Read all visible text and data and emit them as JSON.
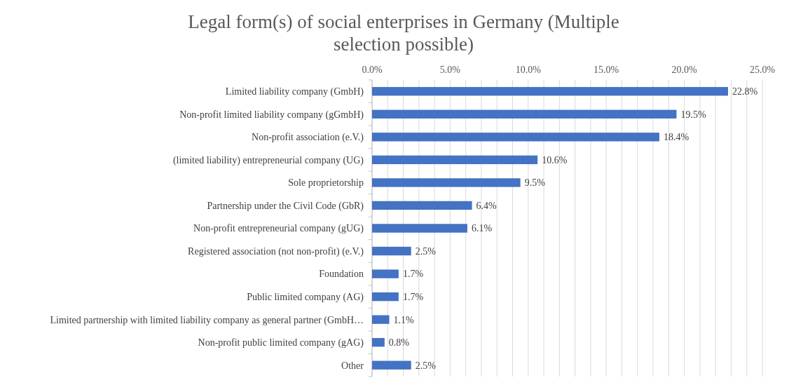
{
  "chart_data": {
    "type": "bar",
    "orientation": "horizontal",
    "title": "Legal form(s) of social enterprises in Germany (Multiple selection possible)",
    "categories": [
      "Limited liability company (GmbH)",
      "Non-profit limited liability company (gGmbH)",
      "Non-profit association (e.V.)",
      "(limited liability) entrepreneurial company (UG)",
      "Sole proprietorship",
      "Partnership under the Civil Code (GbR)",
      "Non-profit entrepreneurial company (gUG)",
      "Registered association (not non-profit) (e.V.)",
      "Foundation",
      "Public limited company (AG)",
      "Limited partnership with limited liability company as general partner (GmbH…",
      "Non-profit public limited company (gAG)",
      "Other"
    ],
    "values": [
      22.8,
      19.5,
      18.4,
      10.6,
      9.5,
      6.4,
      6.1,
      2.5,
      1.7,
      1.7,
      1.1,
      0.8,
      2.5
    ],
    "value_labels": [
      "22.8%",
      "19.5%",
      "18.4%",
      "10.6%",
      "9.5%",
      "6.4%",
      "6.1%",
      "2.5%",
      "1.7%",
      "1.7%",
      "1.1%",
      "0.8%",
      "2.5%"
    ],
    "color": "#4472c4",
    "xlim": [
      0,
      25
    ],
    "xticks": [
      {
        "value": 0,
        "label": "0.0%"
      },
      {
        "value": 1,
        "label": null
      },
      {
        "value": 2,
        "label": null
      },
      {
        "value": 3,
        "label": null
      },
      {
        "value": 4,
        "label": null
      },
      {
        "value": 5,
        "label": "5.0%"
      },
      {
        "value": 6,
        "label": null
      },
      {
        "value": 7,
        "label": null
      },
      {
        "value": 8,
        "label": null
      },
      {
        "value": 9,
        "label": null
      },
      {
        "value": 10,
        "label": "10.0%"
      },
      {
        "value": 11,
        "label": null
      },
      {
        "value": 12,
        "label": null
      },
      {
        "value": 13,
        "label": null
      },
      {
        "value": 14,
        "label": null
      },
      {
        "value": 15,
        "label": "15.0%"
      },
      {
        "value": 16,
        "label": null
      },
      {
        "value": 17,
        "label": null
      },
      {
        "value": 18,
        "label": null
      },
      {
        "value": 19,
        "label": null
      },
      {
        "value": 20,
        "label": "20.0%"
      },
      {
        "value": 21,
        "label": null
      },
      {
        "value": 22,
        "label": null
      },
      {
        "value": 23,
        "label": null
      },
      {
        "value": 24,
        "label": null
      },
      {
        "value": 25,
        "label": "25.0%"
      }
    ],
    "grid": "x"
  }
}
